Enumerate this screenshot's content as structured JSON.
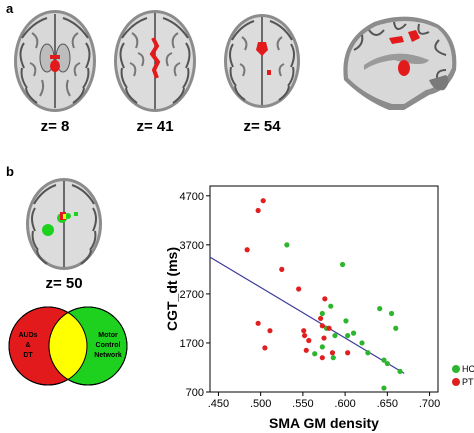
{
  "panels": {
    "a": "a",
    "b": "b"
  },
  "panel_a": {
    "slices": [
      {
        "label": "z= 8"
      },
      {
        "label": "z= 41"
      },
      {
        "label": "z= 54"
      }
    ]
  },
  "panel_b": {
    "slice_label": "z= 50",
    "venn": {
      "left_lines": [
        "AUDs",
        "&",
        "DT"
      ],
      "right_lines": [
        "Motor",
        "Control",
        "Network"
      ],
      "left_color": "#e31a1c",
      "right_color": "#1fd11f",
      "overlap_color": "#ffff00"
    }
  },
  "chart_data": {
    "type": "scatter",
    "xlabel": "SMA GM density",
    "ylabel": "CGT_dt (ms)",
    "xlim": [
      0.44,
      0.71
    ],
    "ylim": [
      700,
      4900
    ],
    "x_ticks": [
      ".450",
      ".500",
      ".550",
      ".600",
      ".650",
      ".700"
    ],
    "x_tick_values": [
      0.45,
      0.5,
      0.55,
      0.6,
      0.65,
      0.7
    ],
    "y_ticks": [
      "700",
      "1700",
      "2700",
      "3700",
      "4700"
    ],
    "y_tick_values": [
      700,
      1700,
      2700,
      3700,
      4700
    ],
    "legend_position": "bottom-right",
    "regression_line": {
      "x": [
        0.44,
        0.67
      ],
      "y": [
        3450,
        1080
      ],
      "color": "#3a3a9a"
    },
    "series": [
      {
        "name": "HC",
        "color": "#2db52d",
        "points": [
          [
            0.531,
            3700
          ],
          [
            0.597,
            3300
          ],
          [
            0.573,
            2300
          ],
          [
            0.583,
            2450
          ],
          [
            0.601,
            2150
          ],
          [
            0.61,
            1900
          ],
          [
            0.641,
            2400
          ],
          [
            0.655,
            2300
          ],
          [
            0.66,
            2000
          ],
          [
            0.578,
            2000
          ],
          [
            0.588,
            1850
          ],
          [
            0.603,
            1850
          ],
          [
            0.62,
            1700
          ],
          [
            0.573,
            1620
          ],
          [
            0.564,
            1480
          ],
          [
            0.586,
            1400
          ],
          [
            0.627,
            1500
          ],
          [
            0.646,
            1350
          ],
          [
            0.65,
            1280
          ],
          [
            0.665,
            1120
          ],
          [
            0.646,
            780
          ]
        ]
      },
      {
        "name": "PT",
        "color": "#e02020",
        "points": [
          [
            0.503,
            4600
          ],
          [
            0.497,
            4400
          ],
          [
            0.484,
            3600
          ],
          [
            0.525,
            3200
          ],
          [
            0.545,
            2800
          ],
          [
            0.576,
            2600
          ],
          [
            0.571,
            2200
          ],
          [
            0.573,
            2050
          ],
          [
            0.581,
            2000
          ],
          [
            0.497,
            2100
          ],
          [
            0.511,
            1950
          ],
          [
            0.551,
            1950
          ],
          [
            0.552,
            1850
          ],
          [
            0.557,
            1750
          ],
          [
            0.575,
            1800
          ],
          [
            0.505,
            1600
          ],
          [
            0.554,
            1550
          ],
          [
            0.573,
            1400
          ],
          [
            0.585,
            1500
          ],
          [
            0.603,
            1500
          ]
        ]
      }
    ]
  }
}
